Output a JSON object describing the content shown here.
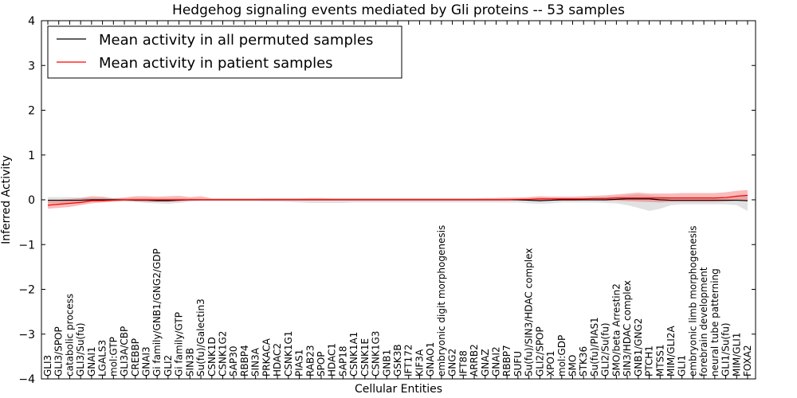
{
  "chart_data": {
    "type": "line",
    "title": "Hedgehog signaling events mediated by Gli proteins -- 53 samples",
    "xlabel": "Cellular Entities",
    "ylabel": "Inferred Activity",
    "ylim": [
      -4,
      4
    ],
    "yticks": [
      "−4",
      "−3",
      "−2",
      "−1",
      "0",
      "1",
      "2",
      "3",
      "4"
    ],
    "legend": {
      "placement": "top-left",
      "entries": [
        {
          "name": "Mean activity in all permuted samples",
          "color": "#000000"
        },
        {
          "name": "Mean activity in patient samples",
          "color": "#ff0000"
        }
      ]
    },
    "categories": [
      "GLI3",
      "GLI3/SPOP",
      "catabolic process",
      "GLI3/Su(fu)",
      "GNAI1",
      "LGALS3",
      "mol:GTP",
      "GLI3A/CBP",
      "CREBBP",
      "GNAI3",
      "Gi family/GNB1/GNG2/GDP",
      "GLI2",
      "Gi family/GTP",
      "SIN3B",
      "Su(fu)/Galectin3",
      "CSNK1D",
      "CSNK1G2",
      "SAP30",
      "RBBP4",
      "SIN3A",
      "PRKACA",
      "HDAC2",
      "CSNK1G1",
      "PIAS1",
      "RAB23",
      "SPOP",
      "HDAC1",
      "SAP18",
      "CSNK1A1",
      "CSNK1E",
      "CSNK1G3",
      "GNB1",
      "GSK3B",
      "IFT172",
      "KIF3A",
      "GNAO1",
      "embryonic digit morphogenesis",
      "GNG2",
      "IFT88",
      "ARRB2",
      "GNAZ",
      "GNAI2",
      "RBBP7",
      "SUFU",
      "Su(fu)/SIN3/HDAC complex",
      "GLI2/SPOP",
      "XPO1",
      "mol:GDP",
      "SMO",
      "STK36",
      "Su(fu)/PIAS1",
      "GLI2/Su(fu)",
      "SMO/beta Arrestin2",
      "SIN3/HDAC complex",
      "GNB1/GNG2",
      "PTCH1",
      "MTSS1",
      "MIM/GLI2A",
      "GLI1",
      "embryonic limb morphogenesis",
      "forebrain development",
      "neural tube patterning",
      "GLI1/Su(fu)",
      "MIM/GLI1",
      "FOXA2"
    ],
    "series": [
      {
        "name": "Mean activity in all permuted samples",
        "color": "#000000",
        "values": [
          -0.01,
          -0.01,
          -0.01,
          -0.01,
          0,
          0,
          0,
          0,
          -0.01,
          -0.01,
          -0.02,
          -0.02,
          -0.01,
          0,
          0,
          0,
          0,
          0,
          0,
          0,
          0,
          0,
          0,
          0,
          0,
          0,
          0,
          0,
          0,
          0,
          0,
          0,
          0,
          0,
          0,
          0,
          0,
          0,
          0,
          0,
          0,
          0,
          0,
          0,
          -0.01,
          -0.02,
          -0.01,
          0,
          0,
          0,
          0,
          0,
          0.01,
          0.02,
          0.02,
          0.02,
          0,
          -0.01,
          -0.01,
          -0.01,
          -0.01,
          -0.01,
          -0.01,
          -0.01,
          -0.02
        ],
        "band_low": [
          -0.08,
          -0.08,
          -0.08,
          -0.07,
          -0.05,
          -0.04,
          -0.04,
          -0.04,
          -0.05,
          -0.07,
          -0.08,
          -0.09,
          -0.07,
          -0.04,
          -0.03,
          -0.03,
          -0.03,
          -0.03,
          -0.03,
          -0.03,
          -0.04,
          -0.04,
          -0.05,
          -0.06,
          -0.07,
          -0.07,
          -0.07,
          -0.07,
          -0.06,
          -0.06,
          -0.06,
          -0.06,
          -0.06,
          -0.06,
          -0.06,
          -0.06,
          -0.06,
          -0.06,
          -0.06,
          -0.06,
          -0.06,
          -0.06,
          -0.06,
          -0.06,
          -0.08,
          -0.09,
          -0.08,
          -0.06,
          -0.06,
          -0.06,
          -0.06,
          -0.07,
          -0.08,
          -0.12,
          -0.18,
          -0.25,
          -0.2,
          -0.12,
          -0.1,
          -0.1,
          -0.1,
          -0.1,
          -0.1,
          -0.12,
          -0.25
        ],
        "band_high": [
          0.06,
          0.06,
          0.06,
          0.05,
          0.04,
          0.04,
          0.04,
          0.04,
          0.04,
          0.04,
          0.03,
          0.03,
          0.03,
          0.03,
          0.02,
          0.02,
          0.02,
          0.02,
          0.02,
          0.02,
          0.03,
          0.03,
          0.03,
          0.03,
          0.03,
          0.03,
          0.03,
          0.03,
          0.03,
          0.03,
          0.03,
          0.03,
          0.03,
          0.03,
          0.03,
          0.03,
          0.03,
          0.03,
          0.03,
          0.03,
          0.03,
          0.03,
          0.03,
          0.03,
          0.04,
          0.05,
          0.04,
          0.04,
          0.04,
          0.04,
          0.05,
          0.06,
          0.08,
          0.1,
          0.12,
          0.1,
          0.08,
          0.06,
          0.06,
          0.06,
          0.06,
          0.06,
          0.06,
          0.07,
          0.1
        ]
      },
      {
        "name": "Mean activity in patient samples",
        "color": "#ff0000",
        "values": [
          -0.12,
          -0.1,
          -0.08,
          -0.06,
          -0.02,
          -0.02,
          -0.01,
          0,
          0,
          0,
          0,
          0,
          0,
          0,
          0,
          0,
          0,
          0,
          0,
          0,
          0,
          0,
          0,
          0,
          0,
          0,
          0,
          0,
          0,
          0,
          0,
          0,
          0,
          0,
          0,
          0,
          0,
          0,
          0,
          0,
          0,
          0,
          0,
          0.01,
          0.01,
          0.02,
          0.02,
          0.02,
          0.02,
          0.02,
          0.03,
          0.03,
          0.04,
          0.04,
          0.04,
          0.04,
          0.04,
          0.04,
          0.04,
          0.04,
          0.04,
          0.04,
          0.05,
          0.08,
          0.1
        ],
        "band_low": [
          -0.2,
          -0.18,
          -0.16,
          -0.12,
          -0.08,
          -0.06,
          -0.04,
          -0.02,
          -0.03,
          -0.04,
          -0.04,
          -0.04,
          -0.03,
          -0.02,
          -0.01,
          -0.01,
          -0.01,
          -0.01,
          -0.01,
          -0.01,
          -0.01,
          -0.01,
          -0.01,
          -0.01,
          -0.01,
          -0.01,
          -0.01,
          -0.01,
          -0.01,
          -0.01,
          -0.01,
          -0.01,
          -0.01,
          -0.01,
          -0.01,
          -0.01,
          -0.01,
          -0.01,
          -0.01,
          -0.01,
          -0.01,
          -0.01,
          -0.01,
          -0.01,
          -0.02,
          -0.02,
          -0.02,
          -0.02,
          -0.02,
          -0.01,
          -0.01,
          -0.02,
          -0.02,
          -0.03,
          -0.04,
          -0.05,
          -0.06,
          -0.05,
          -0.05,
          -0.05,
          -0.05,
          -0.05,
          -0.04,
          -0.02,
          -0.02
        ],
        "band_high": [
          -0.02,
          0,
          0.02,
          0.04,
          0.08,
          0.07,
          0.03,
          0.05,
          0.08,
          0.08,
          0.07,
          0.08,
          0.09,
          0.06,
          0.08,
          0.03,
          0.03,
          0.03,
          0.03,
          0.03,
          0.03,
          0.03,
          0.03,
          0.03,
          0.04,
          0.04,
          0.03,
          0.03,
          0.03,
          0.03,
          0.03,
          0.03,
          0.03,
          0.03,
          0.03,
          0.03,
          0.03,
          0.03,
          0.03,
          0.03,
          0.04,
          0.04,
          0.05,
          0.05,
          0.06,
          0.08,
          0.07,
          0.07,
          0.07,
          0.08,
          0.09,
          0.1,
          0.12,
          0.14,
          0.16,
          0.14,
          0.14,
          0.14,
          0.15,
          0.15,
          0.15,
          0.15,
          0.17,
          0.2,
          0.22
        ]
      }
    ]
  }
}
